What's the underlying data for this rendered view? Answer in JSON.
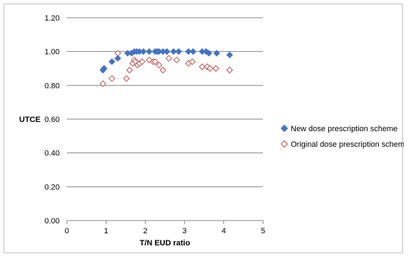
{
  "chart_data": {
    "type": "scatter",
    "title": "",
    "xlabel": "T/N EUD ratio",
    "ylabel": "UTCE",
    "xlim": [
      0,
      5
    ],
    "ylim": [
      0.0,
      1.2
    ],
    "x_ticks": [
      "0",
      "1",
      "2",
      "3",
      "4",
      "5"
    ],
    "y_ticks": [
      "0.00",
      "0.20",
      "0.40",
      "0.60",
      "0.80",
      "1.00",
      "1.20"
    ],
    "grid": "horizontal",
    "legend_position": "right",
    "series": [
      {
        "name": "New dose prescription scheme",
        "marker": "filled-diamond",
        "color": "#4472c4",
        "points": [
          [
            0.92,
            0.89
          ],
          [
            0.95,
            0.9
          ],
          [
            1.15,
            0.94
          ],
          [
            1.3,
            0.96
          ],
          [
            1.55,
            0.99
          ],
          [
            1.65,
            0.99
          ],
          [
            1.72,
            1.0
          ],
          [
            1.78,
            1.0
          ],
          [
            1.85,
            1.0
          ],
          [
            1.95,
            1.0
          ],
          [
            2.1,
            1.0
          ],
          [
            2.25,
            1.0
          ],
          [
            2.3,
            1.0
          ],
          [
            2.35,
            1.0
          ],
          [
            2.45,
            1.0
          ],
          [
            2.55,
            1.0
          ],
          [
            2.72,
            1.0
          ],
          [
            2.85,
            1.0
          ],
          [
            3.1,
            1.0
          ],
          [
            3.22,
            1.0
          ],
          [
            3.45,
            1.0
          ],
          [
            3.55,
            1.0
          ],
          [
            3.62,
            0.99
          ],
          [
            3.82,
            0.99
          ],
          [
            4.15,
            0.98
          ]
        ]
      },
      {
        "name": "Original dose prescription scheme",
        "marker": "hollow-diamond",
        "color": "#c0504d",
        "points": [
          [
            0.92,
            0.81
          ],
          [
            0.95,
            0.9
          ],
          [
            1.15,
            0.84
          ],
          [
            1.3,
            0.99
          ],
          [
            1.52,
            0.84
          ],
          [
            1.6,
            0.89
          ],
          [
            1.68,
            0.93
          ],
          [
            1.72,
            0.95
          ],
          [
            1.75,
            0.94
          ],
          [
            1.8,
            0.92
          ],
          [
            1.85,
            0.93
          ],
          [
            1.92,
            0.94
          ],
          [
            2.1,
            0.95
          ],
          [
            2.2,
            0.94
          ],
          [
            2.25,
            0.94
          ],
          [
            2.3,
            1.0
          ],
          [
            2.35,
            0.92
          ],
          [
            2.45,
            0.89
          ],
          [
            2.55,
            1.0
          ],
          [
            2.6,
            0.96
          ],
          [
            2.8,
            0.95
          ],
          [
            3.1,
            0.93
          ],
          [
            3.2,
            0.94
          ],
          [
            3.45,
            0.91
          ],
          [
            3.58,
            0.91
          ],
          [
            3.65,
            0.9
          ],
          [
            3.8,
            0.9
          ],
          [
            4.15,
            0.89
          ]
        ]
      }
    ]
  }
}
